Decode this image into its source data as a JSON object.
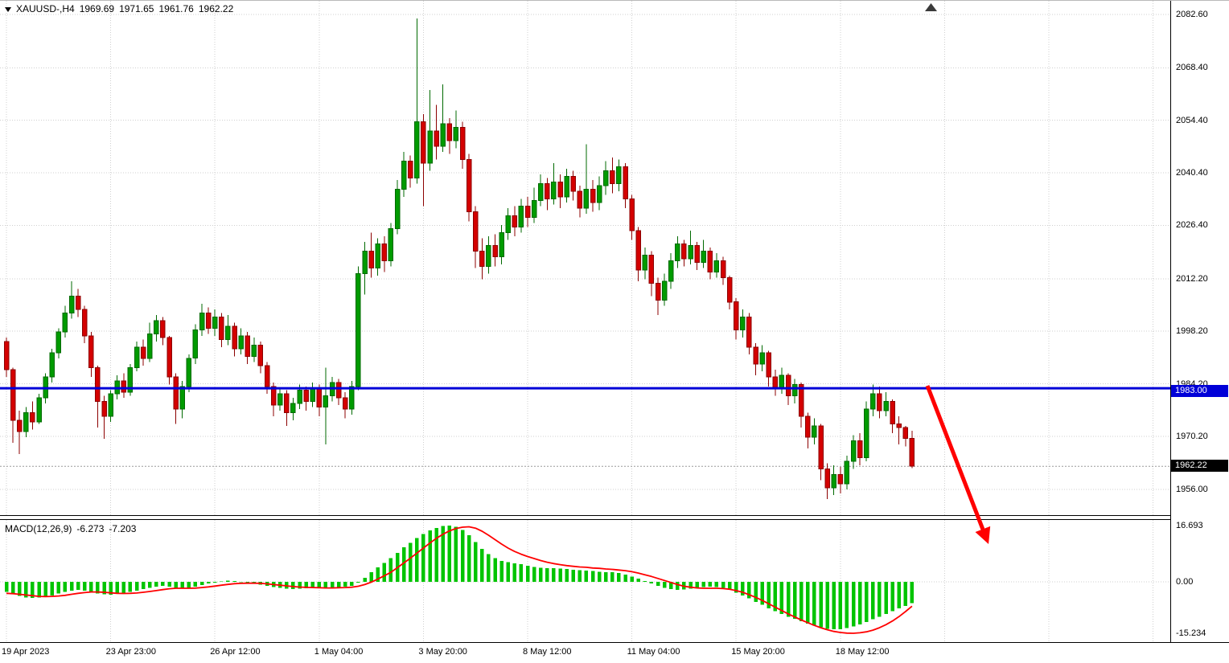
{
  "header": {
    "symbol": "XAUUSD-,H4",
    "open": "1969.69",
    "high": "1971.65",
    "low": "1961.76",
    "close": "1962.22"
  },
  "macd_panel": {
    "name": "MACD(12,26,9)",
    "main_value": "-6.273",
    "signal_value": "-7.203"
  },
  "price_axis": {
    "labels": [
      {
        "text": "2082.60",
        "value": 2082.6
      },
      {
        "text": "2068.40",
        "value": 2068.4
      },
      {
        "text": "2054.40",
        "value": 2054.4
      },
      {
        "text": "2040.40",
        "value": 2040.4
      },
      {
        "text": "2026.40",
        "value": 2026.4
      },
      {
        "text": "2012.20",
        "value": 2012.2
      },
      {
        "text": "1998.20",
        "value": 1998.2
      },
      {
        "text": "1984.20",
        "value": 1984.2
      },
      {
        "text": "1970.20",
        "value": 1970.2
      },
      {
        "text": "1956.00",
        "value": 1956.0
      }
    ],
    "level_label": {
      "text": "1983.00",
      "value": 1983.0
    },
    "current_label": {
      "text": "1962.22",
      "value": 1962.22
    }
  },
  "macd_axis": {
    "labels": [
      {
        "text": "16.693",
        "value": 16.693
      },
      {
        "text": "0.00",
        "value": 0
      },
      {
        "text": "-15.234",
        "value": -15.234
      }
    ]
  },
  "time_axis": {
    "labels": [
      {
        "text": "19 Apr 2023",
        "slot": 0
      },
      {
        "text": "23 Apr 23:00",
        "slot": 1
      },
      {
        "text": "26 Apr 12:00",
        "slot": 2
      },
      {
        "text": "1 May 04:00",
        "slot": 3
      },
      {
        "text": "3 May 20:00",
        "slot": 4
      },
      {
        "text": "8 May 12:00",
        "slot": 5
      },
      {
        "text": "11 May 04:00",
        "slot": 6
      },
      {
        "text": "15 May 20:00",
        "slot": 7
      },
      {
        "text": "18 May 12:00",
        "slot": 8
      }
    ]
  },
  "colors": {
    "up": "#009B00",
    "up_border": "#006A00",
    "down": "#D40000",
    "down_border": "#8C0000",
    "macd_bar": "#00C400",
    "signal": "#FF0000",
    "level_line": "#0000D8",
    "level_label_bg": "#0000D8",
    "current_label_bg": "#000000",
    "grid": "#CFCFCF",
    "arrow": "#FF0000",
    "current_line": "#9A9A9A",
    "axis_text": "#000000"
  },
  "chart_data": [
    {
      "type": "candlestick",
      "symbol": "XAUUSD-",
      "timeframe": "H4",
      "title": "XAUUSD-,H4 1969.69 1971.65 1961.76 1962.22",
      "y_ticks": [
        2082.6,
        2068.4,
        2054.4,
        2040.4,
        2026.4,
        2012.2,
        1998.2,
        1984.2,
        1970.2,
        1956.0
      ],
      "ylim": [
        1950,
        2086
      ],
      "level_line": 1983.0,
      "current_price": 1962.22,
      "trend_arrow": {
        "from_price": 1983.5,
        "direction": "down",
        "color": "#FF0000"
      },
      "x_labels": [
        "19 Apr 2023",
        "23 Apr 23:00",
        "26 Apr 12:00",
        "1 May 04:00",
        "3 May 20:00",
        "8 May 12:00",
        "11 May 04:00",
        "15 May 20:00",
        "18 May 12:00"
      ],
      "candles": [
        [
          1995.5,
          1996.5,
          1986,
          1988
        ],
        [
          1988,
          1988.5,
          1968.5,
          1974.5
        ],
        [
          1974.5,
          1977,
          1965.5,
          1971.5
        ],
        [
          1971.5,
          1978,
          1970,
          1976.5
        ],
        [
          1976.5,
          1979.5,
          1972,
          1974
        ],
        [
          1974,
          1981.5,
          1973.5,
          1980.5
        ],
        [
          1980.5,
          1987,
          1979,
          1986
        ],
        [
          1986,
          1993.5,
          1984.5,
          1992.5
        ],
        [
          1992.5,
          1999,
          1991,
          1998
        ],
        [
          1998,
          2005,
          1996.5,
          2003
        ],
        [
          2003,
          2011.5,
          2001.5,
          2007.5
        ],
        [
          2007.5,
          2009.5,
          2002,
          2004
        ],
        [
          2004,
          2005,
          1995,
          1997
        ],
        [
          1997,
          1998,
          1986,
          1988.5
        ],
        [
          1988.5,
          1989,
          1972.5,
          1979.5
        ],
        [
          1979.5,
          1981,
          1969.5,
          1975.5
        ],
        [
          1975.5,
          1982.5,
          1974,
          1981.5
        ],
        [
          1981.5,
          1986.5,
          1980,
          1985
        ],
        [
          1985,
          1987,
          1980.5,
          1982
        ],
        [
          1982,
          1989.5,
          1981,
          1988.5
        ],
        [
          1988.5,
          1995.5,
          1987.5,
          1994
        ],
        [
          1994,
          1996,
          1989,
          1991
        ],
        [
          1991,
          2000.5,
          1990,
          1997.5
        ],
        [
          1997.5,
          2002.5,
          1995.5,
          2001
        ],
        [
          2001,
          2002,
          1994.5,
          1996.5
        ],
        [
          1996.5,
          1997,
          1984,
          1986
        ],
        [
          1986,
          1987,
          1973.5,
          1977.5
        ],
        [
          1977.5,
          1985,
          1975,
          1983.5
        ],
        [
          1983.5,
          1992,
          1982,
          1991
        ],
        [
          1991,
          2000,
          1989.5,
          1998.5
        ],
        [
          1998.5,
          2005.5,
          1997,
          2003
        ],
        [
          2003,
          2004.5,
          1997.5,
          1999
        ],
        [
          1999,
          2004,
          1997,
          2002
        ],
        [
          2002,
          2003,
          1994,
          1996
        ],
        [
          1996,
          2002.5,
          1994.5,
          1999.5
        ],
        [
          1999.5,
          2000.5,
          1991.5,
          1993.5
        ],
        [
          1993.5,
          1999,
          1992,
          1997
        ],
        [
          1997,
          1998,
          1989.5,
          1991.5
        ],
        [
          1991.5,
          1996.5,
          1990,
          1994.5
        ],
        [
          1994.5,
          1995.5,
          1987,
          1989
        ],
        [
          1989,
          1990,
          1981.5,
          1983.5
        ],
        [
          1983.5,
          1984.5,
          1975.5,
          1978.5
        ],
        [
          1978.5,
          1983,
          1977,
          1981.5
        ],
        [
          1981.5,
          1982.5,
          1973,
          1976.5
        ],
        [
          1976.5,
          1980.5,
          1974.5,
          1979
        ],
        [
          1979,
          1984,
          1977.5,
          1982.5
        ],
        [
          1982.5,
          1983.5,
          1977,
          1979.5
        ],
        [
          1979.5,
          1984.5,
          1978,
          1983
        ],
        [
          1983,
          1984,
          1975.5,
          1978
        ],
        [
          1978,
          1988.5,
          1968,
          1981
        ],
        [
          1981,
          1986,
          1979.5,
          1984.5
        ],
        [
          1984.5,
          1985.5,
          1978.5,
          1980.5
        ],
        [
          1980.5,
          1982,
          1975,
          1977.5
        ],
        [
          1977.5,
          1985,
          1976,
          1983.5
        ],
        [
          1983.5,
          2015.5,
          1982.5,
          2013.5
        ],
        [
          2013.5,
          2022,
          2008,
          2019.5
        ],
        [
          2019.5,
          2024.5,
          2012.5,
          2015
        ],
        [
          2015,
          2023,
          2013,
          2021.5
        ],
        [
          2021.5,
          2023.5,
          2014,
          2017
        ],
        [
          2017,
          2027,
          2015.5,
          2025.5
        ],
        [
          2025.5,
          2038.5,
          2024,
          2036
        ],
        [
          2036,
          2046,
          2034,
          2043.5
        ],
        [
          2043.5,
          2045,
          2036.5,
          2039
        ],
        [
          2039,
          2081.5,
          2037.5,
          2054
        ],
        [
          2054,
          2056,
          2031.5,
          2043
        ],
        [
          2043,
          2062.5,
          2041,
          2051.5
        ],
        [
          2051.5,
          2058.5,
          2044,
          2047.5
        ],
        [
          2047.5,
          2064,
          2046,
          2053.5
        ],
        [
          2053.5,
          2055,
          2045.5,
          2049
        ],
        [
          2049,
          2057,
          2047,
          2052.5
        ],
        [
          2052.5,
          2054,
          2041.5,
          2044
        ],
        [
          2044,
          2045.5,
          2027.5,
          2030
        ],
        [
          2030,
          2031.5,
          2015,
          2019.5
        ],
        [
          2019.5,
          2023,
          2012,
          2015.5
        ],
        [
          2015.5,
          2023.5,
          2013.5,
          2021
        ],
        [
          2021,
          2024,
          2015.5,
          2018
        ],
        [
          2018,
          2026.5,
          2016,
          2024.5
        ],
        [
          2024.5,
          2031,
          2022.5,
          2029
        ],
        [
          2029,
          2031.5,
          2023.5,
          2026
        ],
        [
          2026,
          2033.5,
          2024.5,
          2031.5
        ],
        [
          2031.5,
          2034,
          2026,
          2028.5
        ],
        [
          2028.5,
          2036.5,
          2027,
          2033
        ],
        [
          2033,
          2040,
          2031.5,
          2037.5
        ],
        [
          2037.5,
          2039,
          2030.5,
          2033.5
        ],
        [
          2033.5,
          2043,
          2032,
          2038
        ],
        [
          2038,
          2040,
          2031,
          2034
        ],
        [
          2034,
          2041.5,
          2032.5,
          2039.5
        ],
        [
          2039.5,
          2041,
          2033,
          2035.5
        ],
        [
          2035.5,
          2037,
          2028.5,
          2031
        ],
        [
          2031,
          2048,
          2029.5,
          2036
        ],
        [
          2036,
          2038.5,
          2030,
          2032.5
        ],
        [
          2032.5,
          2039.5,
          2030.5,
          2037
        ],
        [
          2037,
          2043.5,
          2034.5,
          2041
        ],
        [
          2041,
          2044.5,
          2035,
          2037.5
        ],
        [
          2037.5,
          2044,
          2035.5,
          2042
        ],
        [
          2042,
          2043,
          2031,
          2033.5
        ],
        [
          2033.5,
          2034.5,
          2022.5,
          2025
        ],
        [
          2025,
          2026,
          2011.5,
          2014.5
        ],
        [
          2014.5,
          2020.5,
          2012,
          2018.5
        ],
        [
          2018.5,
          2019.5,
          2007.5,
          2011
        ],
        [
          2011,
          2012.5,
          2002.5,
          2006.5
        ],
        [
          2006.5,
          2013.5,
          2005,
          2011.5
        ],
        [
          2011.5,
          2019,
          2009.5,
          2017
        ],
        [
          2017,
          2023.5,
          2015,
          2021.5
        ],
        [
          2021.5,
          2022.5,
          2015.5,
          2017.5
        ],
        [
          2017.5,
          2025,
          2016,
          2021
        ],
        [
          2021,
          2022,
          2014.5,
          2016.5
        ],
        [
          2016.5,
          2022.5,
          2015,
          2019.5
        ],
        [
          2019.5,
          2020.5,
          2012,
          2014
        ],
        [
          2014,
          2019,
          2012.5,
          2017
        ],
        [
          2017,
          2018,
          2010.5,
          2012.5
        ],
        [
          2012.5,
          2013,
          2004,
          2006
        ],
        [
          2006,
          2007,
          1996,
          1998.5
        ],
        [
          1998.5,
          2004,
          1996.5,
          2002
        ],
        [
          2002,
          2003,
          1992,
          1994
        ],
        [
          1994,
          1995,
          1986.5,
          1989.5
        ],
        [
          1989.5,
          1994.5,
          1987.5,
          1992.5
        ],
        [
          1992.5,
          1993,
          1983.5,
          1986
        ],
        [
          1986,
          1988,
          1981,
          1983
        ],
        [
          1983,
          1988.5,
          1981.5,
          1986.5
        ],
        [
          1986.5,
          1987,
          1978.5,
          1981
        ],
        [
          1981,
          1985.5,
          1979,
          1984
        ],
        [
          1984,
          1984.5,
          1972.5,
          1975.5
        ],
        [
          1975.5,
          1976.5,
          1967,
          1970
        ],
        [
          1970,
          1975,
          1968,
          1973
        ],
        [
          1973,
          1973.5,
          1958.5,
          1961.5
        ],
        [
          1961.5,
          1963,
          1953.5,
          1956.5
        ],
        [
          1956.5,
          1962.5,
          1954.5,
          1960
        ],
        [
          1960,
          1962,
          1955,
          1957.5
        ],
        [
          1957.5,
          1965,
          1956,
          1963.5
        ],
        [
          1963.5,
          1970.5,
          1961.5,
          1969
        ],
        [
          1969,
          1971,
          1962.5,
          1964.5
        ],
        [
          1964.5,
          1979.5,
          1963.5,
          1977.5
        ],
        [
          1977.5,
          1984,
          1975.5,
          1981.5
        ],
        [
          1981.5,
          1983.5,
          1975,
          1977
        ],
        [
          1977,
          1982,
          1975.5,
          1979.5
        ],
        [
          1979.5,
          1980,
          1971,
          1973.5
        ],
        [
          1973.5,
          1975.5,
          1968,
          1972.5
        ],
        [
          1972.5,
          1973,
          1967.5,
          1969.69
        ],
        [
          1969.69,
          1971.65,
          1961.76,
          1962.22
        ]
      ]
    },
    {
      "type": "bar",
      "name": "MACD(12,26,9)",
      "main_value": -6.273,
      "signal_value": -7.203,
      "y_ticks": [
        16.693,
        0,
        -15.234
      ],
      "ylim": [
        -17,
        18
      ],
      "histogram": [
        -3.0,
        -3.6,
        -4.2,
        -4.6,
        -4.8,
        -4.7,
        -4.4,
        -4.0,
        -3.5,
        -3.0,
        -2.6,
        -2.4,
        -2.6,
        -3.0,
        -3.4,
        -3.7,
        -3.8,
        -3.6,
        -3.3,
        -3.0,
        -2.6,
        -2.2,
        -1.8,
        -1.4,
        -1.2,
        -1.4,
        -1.8,
        -2.0,
        -1.8,
        -1.4,
        -0.9,
        -0.5,
        -0.2,
        0.1,
        0.3,
        0.2,
        0.0,
        -0.3,
        -0.5,
        -0.8,
        -1.2,
        -1.6,
        -1.8,
        -2.0,
        -2.1,
        -2.0,
        -1.9,
        -1.8,
        -1.8,
        -1.9,
        -1.7,
        -1.5,
        -1.4,
        -1.2,
        -0.2,
        1.2,
        2.8,
        4.3,
        5.6,
        7.0,
        8.6,
        10.2,
        11.5,
        13.0,
        14.2,
        15.2,
        16.0,
        16.5,
        16.693,
        16.3,
        15.4,
        13.8,
        11.8,
        9.8,
        8.2,
        7.0,
        6.2,
        5.8,
        5.5,
        5.2,
        4.8,
        4.4,
        4.2,
        4.0,
        4.0,
        3.9,
        3.8,
        3.6,
        3.4,
        3.3,
        3.2,
        3.0,
        2.9,
        2.8,
        2.6,
        2.2,
        1.6,
        0.9,
        0.2,
        -0.5,
        -1.2,
        -1.8,
        -2.2,
        -2.4,
        -2.3,
        -2.0,
        -1.7,
        -1.5,
        -1.4,
        -1.5,
        -1.8,
        -2.4,
        -3.2,
        -4.0,
        -4.9,
        -5.9,
        -6.8,
        -7.8,
        -8.7,
        -9.5,
        -10.3,
        -11.0,
        -11.7,
        -12.4,
        -13.0,
        -13.5,
        -13.9,
        -14.1,
        -14.0,
        -13.7,
        -13.2,
        -12.6,
        -11.9,
        -11.1,
        -10.3,
        -9.5,
        -8.7,
        -7.9,
        -7.1,
        -6.273
      ],
      "signal": [
        -3.4,
        -3.5,
        -3.7,
        -3.9,
        -4.1,
        -4.3,
        -4.35,
        -4.3,
        -4.2,
        -4.0,
        -3.7,
        -3.4,
        -3.2,
        -3.0,
        -3.0,
        -3.1,
        -3.25,
        -3.4,
        -3.45,
        -3.4,
        -3.3,
        -3.1,
        -2.85,
        -2.6,
        -2.3,
        -2.05,
        -1.9,
        -1.9,
        -1.9,
        -1.85,
        -1.7,
        -1.5,
        -1.25,
        -1.0,
        -0.75,
        -0.55,
        -0.45,
        -0.4,
        -0.4,
        -0.45,
        -0.6,
        -0.8,
        -1.0,
        -1.2,
        -1.4,
        -1.55,
        -1.65,
        -1.7,
        -1.75,
        -1.8,
        -1.8,
        -1.75,
        -1.7,
        -1.6,
        -1.3,
        -0.8,
        -0.1,
        0.8,
        1.8,
        2.8,
        4.2,
        5.6,
        7.0,
        8.5,
        10.0,
        11.5,
        12.9,
        14.1,
        15.1,
        15.8,
        16.2,
        16.3,
        15.9,
        15.0,
        13.8,
        12.5,
        11.2,
        10.0,
        9.0,
        8.2,
        7.5,
        6.9,
        6.3,
        5.8,
        5.4,
        5.1,
        4.8,
        4.6,
        4.4,
        4.3,
        4.1,
        4.0,
        3.8,
        3.7,
        3.5,
        3.3,
        3.0,
        2.6,
        2.1,
        1.6,
        1.0,
        0.4,
        -0.2,
        -0.8,
        -1.3,
        -1.6,
        -1.8,
        -1.9,
        -1.9,
        -1.9,
        -2.0,
        -2.2,
        -2.6,
        -3.1,
        -3.8,
        -4.6,
        -5.5,
        -6.5,
        -7.5,
        -8.5,
        -9.5,
        -10.4,
        -11.3,
        -12.1,
        -12.9,
        -13.6,
        -14.2,
        -14.7,
        -15.0,
        -15.2,
        -15.23,
        -15.1,
        -14.8,
        -14.3,
        -13.6,
        -12.7,
        -11.6,
        -10.3,
        -8.8,
        -7.203
      ]
    }
  ]
}
